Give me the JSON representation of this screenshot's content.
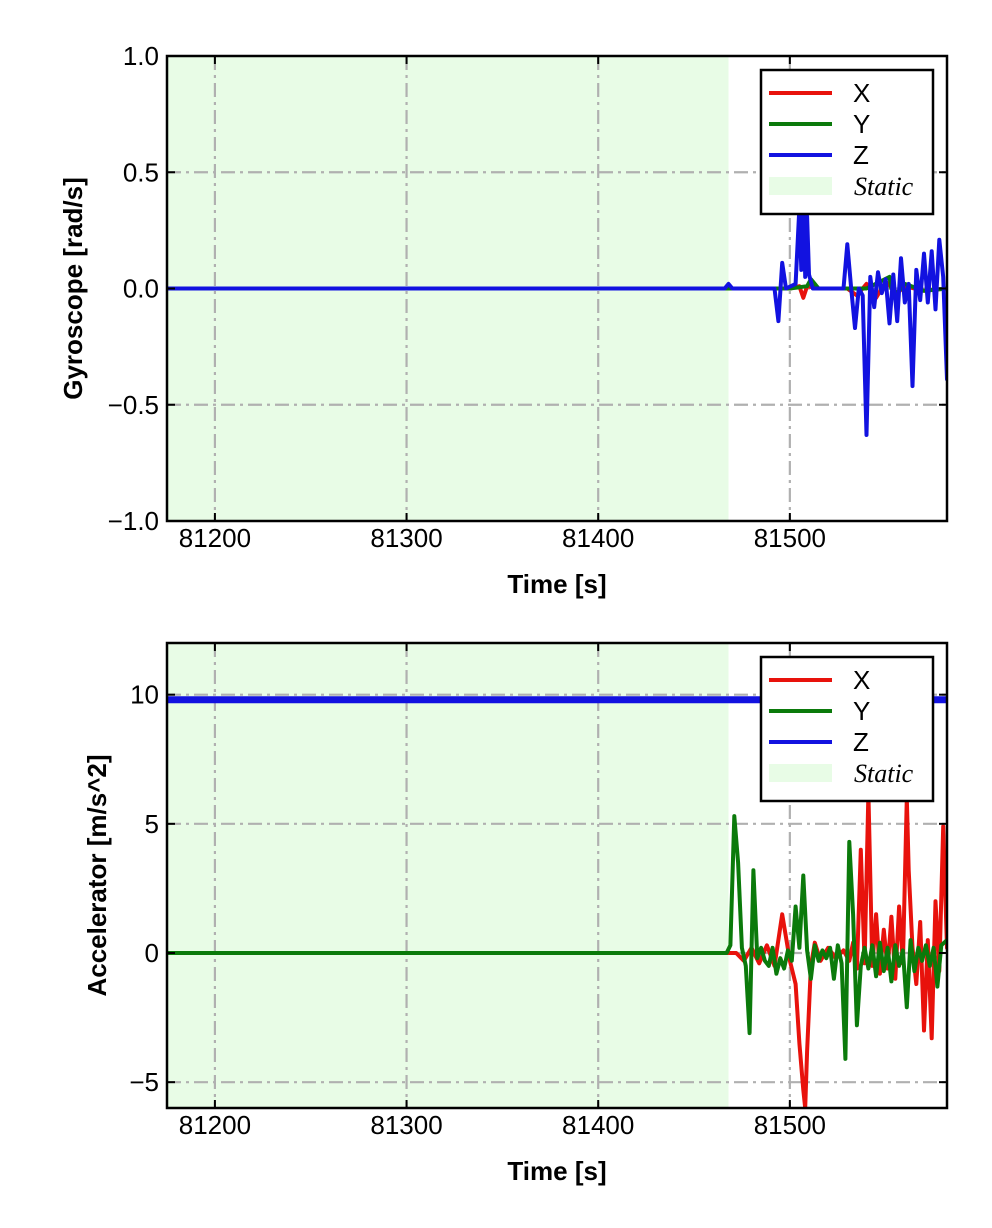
{
  "figure": {
    "background": "#ffffff"
  },
  "colors": {
    "X": "#e8120c",
    "Y": "#0b7a0b",
    "Z": "#1212e0",
    "static": "#e8fce6",
    "grid": "#b0b0b0"
  },
  "chart_data": [
    {
      "type": "line",
      "xlabel": "Time [s]",
      "ylabel": "Gyroscope [rad/s]",
      "xlim": [
        81175,
        81582
      ],
      "ylim": [
        -1.0,
        1.0
      ],
      "xticks": [
        81200,
        81300,
        81400,
        81500
      ],
      "xtick_labels": [
        "81200",
        "81300",
        "81400",
        "81500"
      ],
      "yticks": [
        -1.0,
        -0.5,
        0.0,
        0.5,
        1.0
      ],
      "ytick_labels": [
        "−1.0",
        "−0.5",
        "0.0",
        "0.5",
        "1.0"
      ],
      "grid": true,
      "legend_position": "top-right",
      "static_region": [
        81175,
        81468
      ],
      "series": [
        {
          "name": "X",
          "color": "#e8120c",
          "x": [
            81175,
            81468,
            81500,
            81505,
            81507,
            81509,
            81515,
            81530,
            81535,
            81540,
            81545,
            81550,
            81556,
            81560,
            81570,
            81582
          ],
          "y": [
            0,
            0,
            0,
            0.01,
            -0.04,
            0.01,
            0,
            0,
            -0.03,
            0.02,
            -0.04,
            0.03,
            -0.02,
            0.01,
            -0.01,
            0
          ]
        },
        {
          "name": "Y",
          "color": "#0b7a0b",
          "x": [
            81175,
            81468,
            81500,
            81509,
            81511,
            81515,
            81540,
            81552,
            81553,
            81556,
            81560,
            81570,
            81582
          ],
          "y": [
            0,
            0,
            0,
            0.01,
            0.04,
            0,
            0,
            0.05,
            0,
            -0.02,
            0.02,
            -0.01,
            0
          ]
        },
        {
          "name": "Z",
          "color": "#1212e0",
          "x": [
            81175,
            81466,
            81468,
            81470,
            81492,
            81494,
            81496,
            81498,
            81503,
            81505,
            81506,
            81507,
            81508,
            81509,
            81510,
            81512,
            81514,
            81518,
            81528,
            81530,
            81532,
            81534,
            81536,
            81538,
            81540,
            81542,
            81544,
            81546,
            81548,
            81550,
            81552,
            81554,
            81556,
            81558,
            81560,
            81562,
            81564,
            81566,
            81568,
            81570,
            81572,
            81574,
            81576,
            81578,
            81580,
            81582
          ],
          "y": [
            0,
            0,
            0.02,
            0,
            0,
            -0.14,
            0.11,
            0,
            0.02,
            0.35,
            0.08,
            0.45,
            0.05,
            0.31,
            0.06,
            0,
            0,
            0,
            0,
            0.19,
            0,
            -0.17,
            0,
            -0.03,
            -0.63,
            0.05,
            -0.08,
            0.07,
            -0.02,
            0.04,
            -0.15,
            0.06,
            -0.14,
            0.13,
            -0.06,
            0.02,
            -0.42,
            0.08,
            -0.05,
            0.15,
            -0.06,
            0.16,
            -0.09,
            0.21,
            0.05,
            -0.39
          ]
        }
      ]
    },
    {
      "type": "line",
      "xlabel": "Time [s]",
      "ylabel": "Accelerator [m/s^2]",
      "xlim": [
        81175,
        81582
      ],
      "ylim": [
        -6.0,
        12.0
      ],
      "xticks": [
        81200,
        81300,
        81400,
        81500
      ],
      "xtick_labels": [
        "81200",
        "81300",
        "81400",
        "81500"
      ],
      "yticks": [
        -5,
        0,
        5,
        10
      ],
      "ytick_labels": [
        "−5",
        "0",
        "5",
        "10"
      ],
      "grid": true,
      "legend_position": "top-right",
      "static_region": [
        81175,
        81468
      ],
      "series": [
        {
          "name": "X",
          "color": "#e8120c",
          "x": [
            81175,
            81468,
            81472,
            81476,
            81480,
            81484,
            81488,
            81492,
            81496,
            81500,
            81503,
            81505,
            81507,
            81508,
            81509,
            81511,
            81513,
            81516,
            81520,
            81524,
            81528,
            81531,
            81533,
            81535,
            81537,
            81539,
            81541,
            81543,
            81545,
            81547,
            81549,
            81551,
            81553,
            81555,
            81557,
            81559,
            81561,
            81562,
            81564,
            81566,
            81568,
            81570,
            81572,
            81574,
            81576,
            81578,
            81580,
            81582
          ],
          "y": [
            0,
            0,
            0,
            -0.3,
            0.2,
            -0.4,
            0.3,
            -0.5,
            1.5,
            -0.3,
            -1.2,
            -3.5,
            -5.3,
            -6.0,
            -3.8,
            -0.5,
            0.4,
            -0.3,
            0.2,
            -0.2,
            0.1,
            -0.3,
            0.4,
            -0.6,
            4.0,
            -0.4,
            6.2,
            -0.5,
            1.5,
            -0.8,
            0.9,
            -0.6,
            1.4,
            -1.0,
            1.8,
            -0.4,
            6.0,
            3.2,
            0.2,
            -1.2,
            1.2,
            -3.0,
            0.5,
            -3.3,
            2.0,
            -0.7,
            4.9,
            0.2
          ]
        },
        {
          "name": "Y",
          "color": "#0b7a0b",
          "x": [
            81175,
            81467,
            81469,
            81471,
            81473,
            81475,
            81477,
            81479,
            81481,
            81483,
            81485,
            81487,
            81489,
            81491,
            81493,
            81495,
            81497,
            81499,
            81501,
            81503,
            81505,
            81507,
            81509,
            81511,
            81513,
            81515,
            81517,
            81519,
            81521,
            81523,
            81525,
            81527,
            81529,
            81531,
            81533,
            81535,
            81537,
            81539,
            81541,
            81543,
            81545,
            81547,
            81549,
            81551,
            81553,
            81555,
            81557,
            81559,
            81561,
            81563,
            81565,
            81567,
            81569,
            81571,
            81573,
            81575,
            81577,
            81579,
            81582
          ],
          "y": [
            0,
            0,
            0.3,
            5.3,
            3.5,
            0.2,
            -0.5,
            -3.1,
            3.2,
            -0.2,
            0.2,
            -0.3,
            -0.5,
            0.2,
            -0.8,
            -0.2,
            -0.6,
            0.1,
            -0.3,
            1.8,
            0.2,
            3.0,
            0.1,
            -1.0,
            0.3,
            -0.3,
            0.1,
            -0.2,
            0.2,
            -1.0,
            0.3,
            -0.4,
            -4.1,
            4.3,
            1.5,
            -2.8,
            -0.5,
            0.2,
            -0.6,
            0.3,
            -0.9,
            0.4,
            -0.7,
            0.2,
            -1.1,
            0.3,
            -0.5,
            0.1,
            -2.1,
            0.5,
            -0.7,
            0.2,
            -0.3,
            0.3,
            -0.5,
            0.2,
            -1.3,
            0.3,
            0.5
          ]
        },
        {
          "name": "Z",
          "color": "#1212e0",
          "x": [
            81175,
            81582
          ],
          "y": [
            9.8,
            9.8
          ]
        }
      ]
    }
  ]
}
